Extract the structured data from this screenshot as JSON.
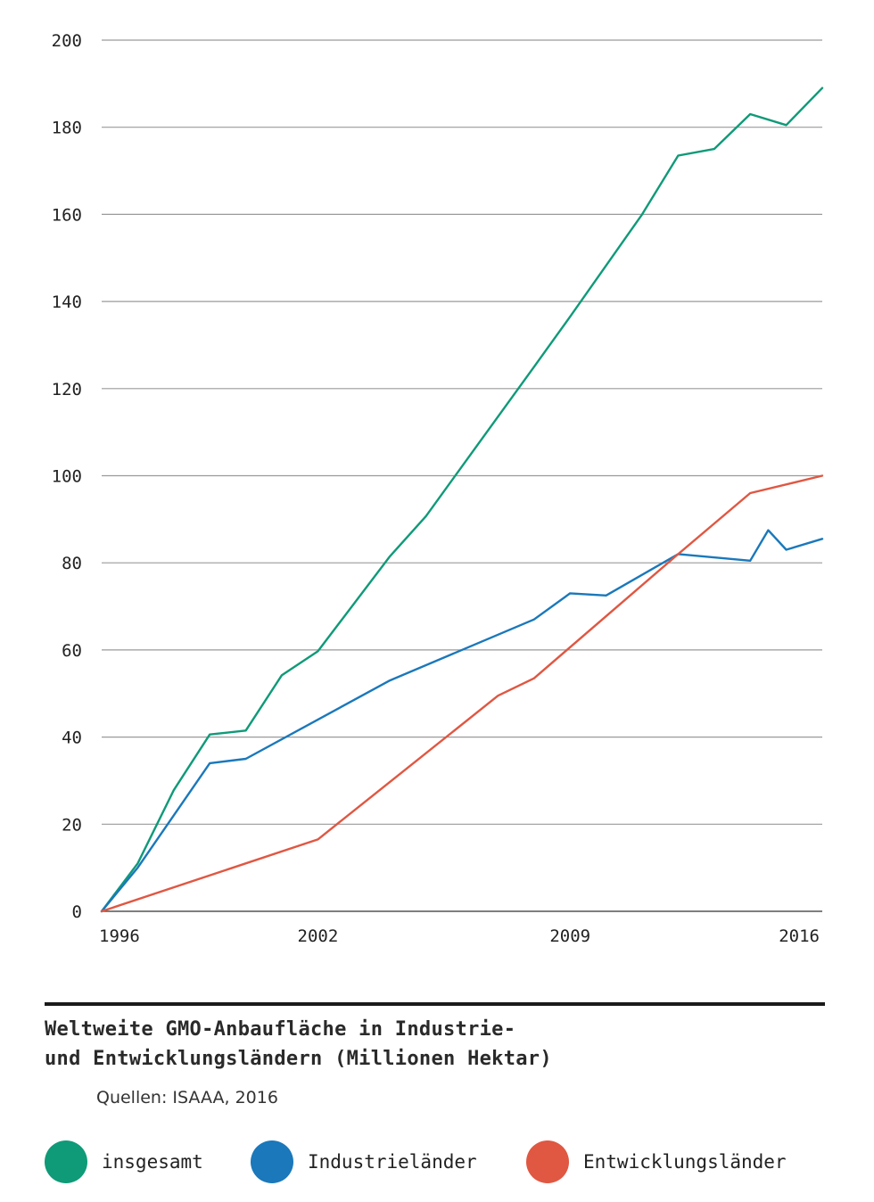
{
  "chart_data": {
    "type": "line",
    "title": "Weltweite GMO-Anbaufläche in Industrie- und Entwicklungsländern (Millionen Hektar)",
    "title_lines": [
      "Weltweite GMO-Anbaufläche in Industrie-",
      "und Entwicklungsländern (Millionen Hektar)"
    ],
    "source": "Quellen: ISAAA, 2016",
    "xlim": [
      1996,
      2016
    ],
    "ylim": [
      0,
      200
    ],
    "x_ticks": [
      "1996",
      "2002",
      "2009",
      "2016"
    ],
    "y_ticks": [
      "0",
      "20",
      "40",
      "60",
      "80",
      "100",
      "120",
      "140",
      "160",
      "180",
      "200"
    ],
    "grid": "horizontal",
    "legend_position": "bottom",
    "series": [
      {
        "name": "insgesamt",
        "color": "#0f9a78",
        "points": [
          [
            1996,
            0
          ],
          [
            1997,
            11
          ],
          [
            1998,
            27.8
          ],
          [
            1999,
            40.6
          ],
          [
            2000,
            41.5
          ],
          [
            2001,
            54.2
          ],
          [
            2002,
            59.7
          ],
          [
            2004,
            81.5
          ],
          [
            2005,
            90.7
          ],
          [
            2008,
            125
          ],
          [
            2009,
            136.5
          ],
          [
            2011,
            160
          ],
          [
            2012,
            173.5
          ],
          [
            2013,
            175
          ],
          [
            2014,
            183
          ],
          [
            2015,
            180.5
          ],
          [
            2016,
            189
          ]
        ]
      },
      {
        "name": "Industrieländer",
        "color": "#1a78bb",
        "points": [
          [
            1996,
            0
          ],
          [
            1997,
            10
          ],
          [
            1999,
            34
          ],
          [
            2000,
            35
          ],
          [
            2004,
            53
          ],
          [
            2008,
            67
          ],
          [
            2009,
            73
          ],
          [
            2010,
            72.5
          ],
          [
            2012,
            82
          ],
          [
            2014,
            80.5
          ],
          [
            2014.5,
            87.5
          ],
          [
            2015,
            83
          ],
          [
            2016,
            85.5
          ]
        ]
      },
      {
        "name": "Entwicklungsländer",
        "color": "#e05742",
        "points": [
          [
            1996,
            0
          ],
          [
            2002,
            16.5
          ],
          [
            2007,
            49.5
          ],
          [
            2008,
            53.5
          ],
          [
            2012,
            82
          ],
          [
            2014,
            96
          ],
          [
            2016,
            100
          ]
        ]
      }
    ]
  }
}
